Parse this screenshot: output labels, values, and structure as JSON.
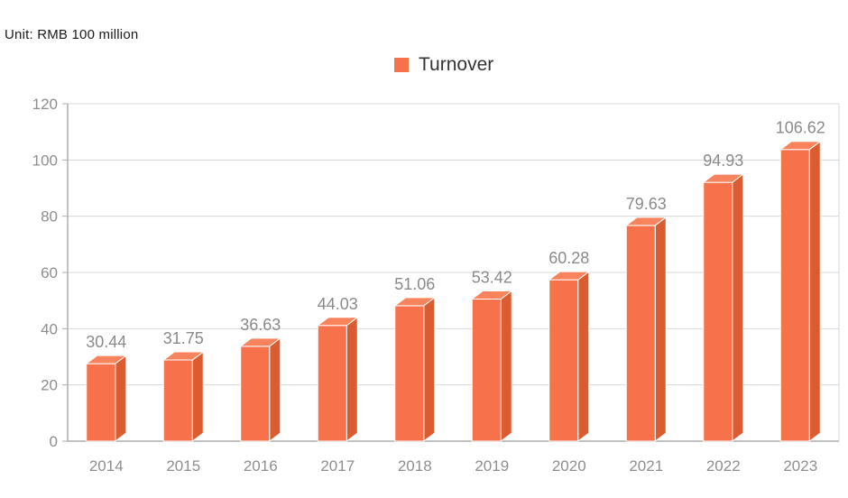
{
  "unit_label": "Unit: RMB 100 million",
  "legend": {
    "label": "Turnover",
    "color": "#F7714A"
  },
  "chart_data": {
    "type": "bar",
    "style": "3d-oblique-bars",
    "title": "",
    "legend_entries": [
      "Turnover"
    ],
    "legend_position": "top-center",
    "categories": [
      "2014",
      "2015",
      "2016",
      "2017",
      "2018",
      "2019",
      "2020",
      "2021",
      "2022",
      "2023"
    ],
    "series": [
      {
        "name": "Turnover",
        "values": [
          30.44,
          31.75,
          36.63,
          44.03,
          51.06,
          53.42,
          60.28,
          79.63,
          94.93,
          106.62
        ]
      }
    ],
    "value_labels": [
      "30.44",
      "31.75",
      "36.63",
      "44.03",
      "51.06",
      "53.42",
      "60.28",
      "79.63",
      "94.93",
      "106.62"
    ],
    "xlabel": "",
    "ylabel": "",
    "ylim": [
      0,
      120
    ],
    "yticks": [
      0,
      20,
      40,
      60,
      80,
      100,
      120
    ],
    "grid": "horizontal",
    "colors": {
      "bar_front": "#F7714A",
      "bar_side": "#DC5C31",
      "bar_top": "#F9835C",
      "bar_edge": "#FFFFFF",
      "gridline": "#D7D7D7",
      "axis_line": "#ADADAD",
      "tick_label": "#8E8E8E",
      "value_label": "#8A8A8A",
      "legend_text": "#333333",
      "unit_text": "#1A1A1A"
    }
  }
}
